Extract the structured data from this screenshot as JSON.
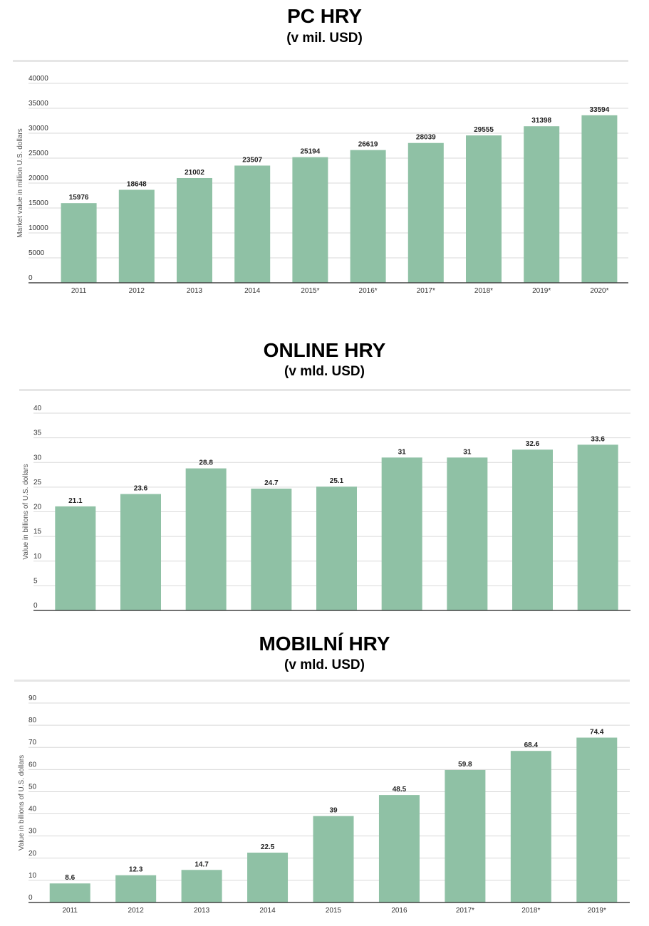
{
  "charts": [
    {
      "title": "PC HRY",
      "subtitle": "(v mil. USD)",
      "chart_data": {
        "type": "bar",
        "categories": [
          "2011",
          "2012",
          "2013",
          "2014",
          "2015*",
          "2016*",
          "2017*",
          "2018*",
          "2019*",
          "2020*"
        ],
        "values": [
          15976,
          18648,
          21002,
          23507,
          25194,
          26619,
          28039,
          29555,
          31398,
          33594
        ],
        "value_labels": [
          "15976",
          "18648",
          "21002",
          "23507",
          "25194",
          "26619",
          "28039",
          "29555",
          "31398",
          "33594"
        ],
        "ylabel": "Market value in million U.S. dollars",
        "ylim": [
          0,
          40000
        ],
        "yticks": [
          0,
          5000,
          10000,
          15000,
          20000,
          25000,
          30000,
          35000,
          40000
        ],
        "grid": true,
        "bar_color": "#8fc1a5"
      }
    },
    {
      "title": "ONLINE HRY",
      "subtitle": "(v mld. USD)",
      "chart_data": {
        "type": "bar",
        "categories": [
          "",
          "",
          "",
          "",
          "",
          "",
          "",
          "",
          ""
        ],
        "values": [
          21.1,
          23.6,
          28.8,
          24.7,
          25.1,
          31,
          31,
          32.6,
          33.6
        ],
        "value_labels": [
          "21.1",
          "23.6",
          "28.8",
          "24.7",
          "25.1",
          "31",
          "31",
          "32.6",
          "33.6"
        ],
        "ylabel": "Value in billions of U.S. dollars",
        "ylim": [
          0,
          40
        ],
        "yticks": [
          0,
          5,
          10,
          15,
          20,
          25,
          30,
          35,
          40
        ],
        "grid": true,
        "bar_color": "#8fc1a5"
      }
    },
    {
      "title": "MOBILNÍ HRY",
      "subtitle": "(v mld. USD)",
      "chart_data": {
        "type": "bar",
        "categories": [
          "2011",
          "2012",
          "2013",
          "2014",
          "2015",
          "2016",
          "2017*",
          "2018*",
          "2019*"
        ],
        "values": [
          8.6,
          12.3,
          14.7,
          22.5,
          39,
          48.5,
          59.8,
          68.4,
          74.4
        ],
        "value_labels": [
          "8.6",
          "12.3",
          "14.7",
          "22.5",
          "39",
          "48.5",
          "59.8",
          "68.4",
          "74.4"
        ],
        "ylabel": "Value in billions of U.S. dollars",
        "ylim": [
          0,
          90
        ],
        "yticks": [
          0,
          10,
          20,
          30,
          40,
          50,
          60,
          70,
          80,
          90
        ],
        "grid": true,
        "bar_color": "#8fc1a5"
      }
    }
  ]
}
